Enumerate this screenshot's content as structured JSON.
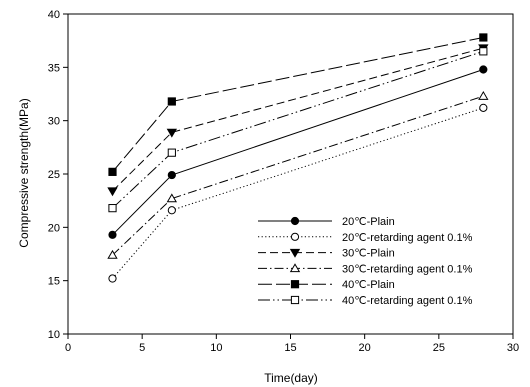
{
  "chart_data": {
    "type": "line",
    "xlabel": "Time(day)",
    "ylabel": "Compressive strength(MPa)",
    "xlim": [
      0,
      30
    ],
    "ylim": [
      10,
      40
    ],
    "xticks": [
      0,
      5,
      10,
      15,
      20,
      25,
      30
    ],
    "yticks": [
      10,
      15,
      20,
      25,
      30,
      35,
      40
    ],
    "grid": false,
    "legend_position": "lower-right",
    "x": [
      3,
      7,
      28
    ],
    "series": [
      {
        "name": "20℃-Plain",
        "values": [
          19.3,
          24.9,
          34.8
        ],
        "marker": "circle",
        "filled": true,
        "dash": "solid"
      },
      {
        "name": "20℃-retarding agent 0.1%",
        "values": [
          15.2,
          21.6,
          31.2
        ],
        "marker": "circle",
        "filled": false,
        "dash": "dotted"
      },
      {
        "name": "30℃-Plain",
        "values": [
          23.4,
          28.9,
          36.8
        ],
        "marker": "triangle-down",
        "filled": true,
        "dash": "dashed"
      },
      {
        "name": "30℃-retarding agent 0.1%",
        "values": [
          17.4,
          22.7,
          32.3
        ],
        "marker": "triangle-up",
        "filled": false,
        "dash": "dashdot"
      },
      {
        "name": "40℃-Plain",
        "values": [
          25.2,
          31.8,
          37.8
        ],
        "marker": "square",
        "filled": true,
        "dash": "longdash"
      },
      {
        "name": "40℃-retarding agent 0.1%",
        "values": [
          21.8,
          27.0,
          36.5
        ],
        "marker": "square",
        "filled": false,
        "dash": "longdashdot"
      }
    ]
  }
}
